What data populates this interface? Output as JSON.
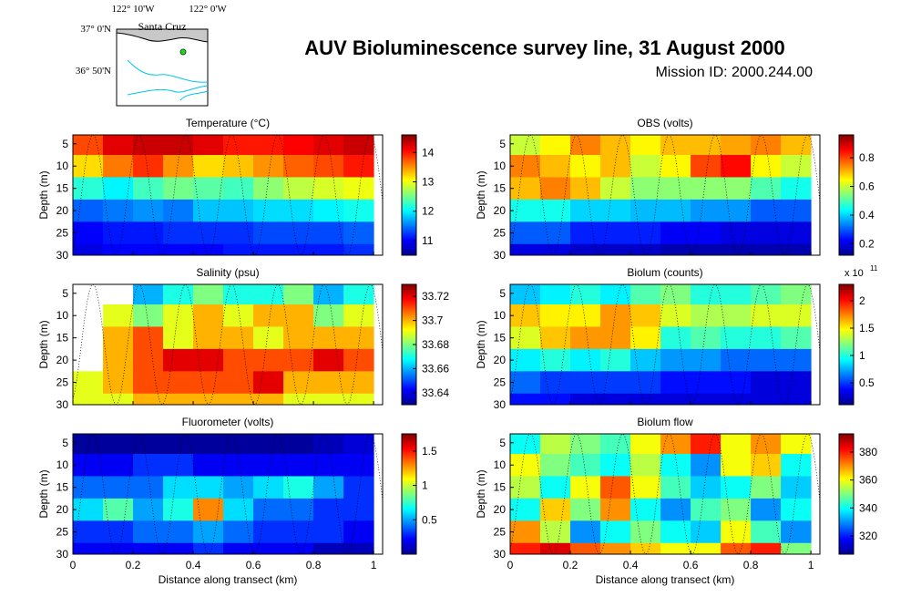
{
  "title": "AUV Bioluminescence survey line, 31 August 2000",
  "subtitle": "Mission ID: 2000.244.00",
  "map": {
    "lon_labels": [
      "122° 10'W",
      "122° 0'W"
    ],
    "lat_labels": [
      "37° 0'N",
      "36° 50'N"
    ],
    "place": "Santa Cruz"
  },
  "chart_data": [
    {
      "type": "heatmap",
      "title": "Temperature (°C)",
      "ylabel": "Depth (m)",
      "colormap": "jet",
      "show_xticklabels": false,
      "x": [
        0.05,
        0.15,
        0.25,
        0.35,
        0.45,
        0.55,
        0.65,
        0.75,
        0.85,
        0.95
      ],
      "y": [
        5,
        10,
        15,
        20,
        25,
        30
      ],
      "z": [
        [
          13.8,
          14.2,
          14.3,
          14.3,
          14.2,
          14.0,
          14.0,
          14.1,
          14.2,
          14.3
        ],
        [
          13.2,
          13.6,
          13.9,
          13.5,
          13.2,
          13.3,
          13.5,
          13.7,
          13.8,
          14.0
        ],
        [
          12.2,
          12.0,
          12.3,
          12.5,
          12.4,
          12.3,
          12.6,
          12.8,
          12.9,
          13.0
        ],
        [
          11.4,
          11.5,
          11.6,
          11.5,
          11.8,
          11.8,
          11.9,
          11.9,
          12.0,
          12.1
        ],
        [
          11.0,
          11.1,
          11.1,
          11.2,
          11.2,
          11.2,
          11.3,
          11.3,
          11.3,
          11.4
        ],
        [
          10.9,
          11.0,
          11.0,
          11.0,
          11.0,
          11.1,
          11.1,
          11.1,
          11.1,
          11.2
        ]
      ],
      "xlim": [
        0,
        1.03
      ],
      "xticks": [
        0,
        0.2,
        0.4,
        0.6,
        0.8,
        1
      ],
      "ylim": [
        3,
        30
      ],
      "y_inverted": true,
      "yticks": [
        5,
        10,
        15,
        20,
        25,
        30
      ],
      "clim": [
        10.5,
        14.6
      ],
      "cticks": [
        11,
        12,
        13,
        14
      ]
    },
    {
      "type": "heatmap",
      "title": "OBS (volts)",
      "ylabel": "Depth (m)",
      "colormap": "jet",
      "show_xticklabels": false,
      "x": [
        0.05,
        0.15,
        0.25,
        0.35,
        0.45,
        0.55,
        0.65,
        0.75,
        0.85,
        0.95
      ],
      "y": [
        5,
        10,
        15,
        20,
        25,
        30
      ],
      "z": [
        [
          0.6,
          0.65,
          0.75,
          0.7,
          0.65,
          0.7,
          0.7,
          0.72,
          0.75,
          0.7
        ],
        [
          0.75,
          0.7,
          0.65,
          0.7,
          0.6,
          0.65,
          0.8,
          0.85,
          0.65,
          0.6
        ],
        [
          0.7,
          0.75,
          0.7,
          0.6,
          0.55,
          0.55,
          0.55,
          0.55,
          0.5,
          0.45
        ],
        [
          0.45,
          0.45,
          0.4,
          0.4,
          0.38,
          0.38,
          0.35,
          0.35,
          0.3,
          0.3
        ],
        [
          0.3,
          0.3,
          0.25,
          0.25,
          0.25,
          0.22,
          0.22,
          0.2,
          0.2,
          0.2
        ],
        [
          0.2,
          0.2,
          0.18,
          0.18,
          0.18,
          0.16,
          0.16,
          0.16,
          0.16,
          0.16
        ]
      ],
      "xlim": [
        0,
        1.03
      ],
      "xticks": [
        0,
        0.2,
        0.4,
        0.6,
        0.8,
        1
      ],
      "ylim": [
        3,
        30
      ],
      "y_inverted": true,
      "yticks": [
        5,
        10,
        15,
        20,
        25,
        30
      ],
      "clim": [
        0.12,
        0.96
      ],
      "cticks": [
        0.2,
        0.4,
        0.6,
        0.8
      ]
    },
    {
      "type": "heatmap",
      "title": "Salinity (psu)",
      "ylabel": "Depth (m)",
      "colormap": "jet",
      "show_xticklabels": false,
      "x": [
        0.05,
        0.15,
        0.25,
        0.35,
        0.45,
        0.55,
        0.65,
        0.75,
        0.85,
        0.95
      ],
      "y": [
        5,
        10,
        15,
        20,
        25,
        30
      ],
      "z": [
        [
          null,
          null,
          33.66,
          33.67,
          33.68,
          33.67,
          33.67,
          33.68,
          33.66,
          33.67
        ],
        [
          null,
          33.69,
          33.68,
          33.69,
          33.7,
          33.69,
          33.7,
          33.7,
          33.68,
          33.69
        ],
        [
          null,
          33.7,
          33.71,
          33.69,
          33.7,
          33.7,
          33.69,
          33.7,
          33.7,
          33.7
        ],
        [
          null,
          33.7,
          33.71,
          33.72,
          33.72,
          33.71,
          33.71,
          33.71,
          33.72,
          33.71
        ],
        [
          33.69,
          33.7,
          33.71,
          33.71,
          33.71,
          33.71,
          33.72,
          33.7,
          33.7,
          33.7
        ],
        [
          33.69,
          33.69,
          33.7,
          33.7,
          33.7,
          33.7,
          33.7,
          33.69,
          33.69,
          33.69
        ]
      ],
      "xlim": [
        0,
        1.03
      ],
      "xticks": [
        0,
        0.2,
        0.4,
        0.6,
        0.8,
        1
      ],
      "ylim": [
        3,
        30
      ],
      "y_inverted": true,
      "yticks": [
        5,
        10,
        15,
        20,
        25,
        30
      ],
      "clim": [
        33.63,
        33.73
      ],
      "cticks": [
        33.64,
        33.66,
        33.68,
        33.7,
        33.72
      ]
    },
    {
      "type": "heatmap",
      "title": "Biolum (counts)",
      "ylabel": "Depth (m)",
      "colormap": "jet",
      "show_xticklabels": false,
      "colorbar_multiplier": {
        "base": "x 10",
        "exponent": "11"
      },
      "x": [
        0.05,
        0.15,
        0.25,
        0.35,
        0.45,
        0.55,
        0.65,
        0.75,
        0.85,
        0.95
      ],
      "y": [
        5,
        10,
        15,
        20,
        25,
        30
      ],
      "z": [
        [
          0.8,
          0.9,
          1.0,
          0.9,
          1.1,
          1.2,
          1.0,
          1.0,
          1.1,
          1.2
        ],
        [
          1.6,
          1.5,
          1.5,
          1.7,
          1.6,
          1.4,
          1.3,
          1.3,
          1.4,
          1.4
        ],
        [
          1.4,
          1.6,
          1.7,
          1.7,
          1.5,
          1.0,
          1.1,
          1.0,
          1.0,
          1.1
        ],
        [
          0.9,
          1.0,
          0.9,
          1.0,
          0.8,
          0.7,
          0.7,
          0.6,
          0.6,
          0.6
        ],
        [
          0.6,
          0.5,
          0.5,
          0.5,
          0.5,
          0.4,
          0.4,
          0.4,
          0.3,
          0.3
        ],
        [
          0.4,
          0.4,
          0.3,
          0.3,
          0.3,
          0.3,
          0.3,
          0.3,
          0.3,
          0.3
        ]
      ],
      "xlim": [
        0,
        1.03
      ],
      "xticks": [
        0,
        0.2,
        0.4,
        0.6,
        0.8,
        1
      ],
      "ylim": [
        3,
        30
      ],
      "y_inverted": true,
      "yticks": [
        5,
        10,
        15,
        20,
        25,
        30
      ],
      "clim": [
        0.1,
        2.3
      ],
      "cticks": [
        0.5,
        1,
        1.5,
        2
      ]
    },
    {
      "type": "heatmap",
      "title": "Fluorometer (volts)",
      "ylabel": "Depth (m)",
      "xlabel": "Distance along transect (km)",
      "colormap": "jet",
      "show_xticklabels": true,
      "x": [
        0.05,
        0.15,
        0.25,
        0.35,
        0.45,
        0.55,
        0.65,
        0.75,
        0.85,
        0.95
      ],
      "y": [
        5,
        10,
        15,
        20,
        25,
        30
      ],
      "z": [
        [
          0.05,
          0.05,
          0.05,
          0.05,
          0.05,
          0.05,
          0.05,
          0.05,
          0.1,
          0.15
        ],
        [
          0.2,
          0.2,
          0.3,
          0.3,
          0.2,
          0.2,
          0.2,
          0.2,
          0.2,
          0.2
        ],
        [
          0.4,
          0.4,
          0.4,
          0.6,
          0.6,
          0.5,
          0.6,
          0.7,
          0.5,
          0.3
        ],
        [
          0.6,
          0.8,
          0.5,
          0.7,
          1.3,
          0.6,
          0.4,
          0.4,
          0.3,
          0.3
        ],
        [
          0.3,
          0.3,
          0.4,
          0.4,
          0.5,
          0.4,
          0.3,
          0.3,
          0.3,
          0.2
        ],
        [
          0.2,
          0.2,
          0.2,
          0.2,
          0.3,
          0.2,
          0.2,
          0.2,
          0.1,
          0.1
        ]
      ],
      "xlim": [
        0,
        1.03
      ],
      "xticks": [
        0,
        0.2,
        0.4,
        0.6,
        0.8,
        1
      ],
      "ylim": [
        3,
        30
      ],
      "y_inverted": true,
      "yticks": [
        5,
        10,
        15,
        20,
        25,
        30
      ],
      "clim": [
        0,
        1.75
      ],
      "cticks": [
        0.5,
        1,
        1.5
      ]
    },
    {
      "type": "heatmap",
      "title": "Biolum flow",
      "ylabel": "Depth (m)",
      "xlabel": "Distance along transect (km)",
      "colormap": "jet",
      "show_xticklabels": true,
      "x": [
        0.05,
        0.15,
        0.25,
        0.35,
        0.45,
        0.55,
        0.65,
        0.75,
        0.85,
        0.95
      ],
      "y": [
        5,
        10,
        15,
        20,
        25,
        30
      ],
      "z": [
        [
          340,
          355,
          350,
          345,
          360,
          370,
          380,
          360,
          370,
          360
        ],
        [
          360,
          350,
          345,
          340,
          355,
          340,
          330,
          360,
          365,
          340
        ],
        [
          355,
          340,
          360,
          375,
          360,
          345,
          335,
          340,
          350,
          335
        ],
        [
          340,
          365,
          350,
          370,
          340,
          330,
          345,
          350,
          330,
          340
        ],
        [
          370,
          355,
          330,
          340,
          350,
          340,
          335,
          360,
          345,
          330
        ],
        [
          380,
          385,
          375,
          370,
          365,
          360,
          360,
          375,
          380,
          350
        ]
      ],
      "xlim": [
        0,
        1.03
      ],
      "xticks": [
        0,
        0.2,
        0.4,
        0.6,
        0.8,
        1
      ],
      "ylim": [
        3,
        30
      ],
      "y_inverted": true,
      "yticks": [
        5,
        10,
        15,
        20,
        25,
        30
      ],
      "clim": [
        307,
        393
      ],
      "cticks": [
        320,
        340,
        360,
        380
      ]
    }
  ]
}
